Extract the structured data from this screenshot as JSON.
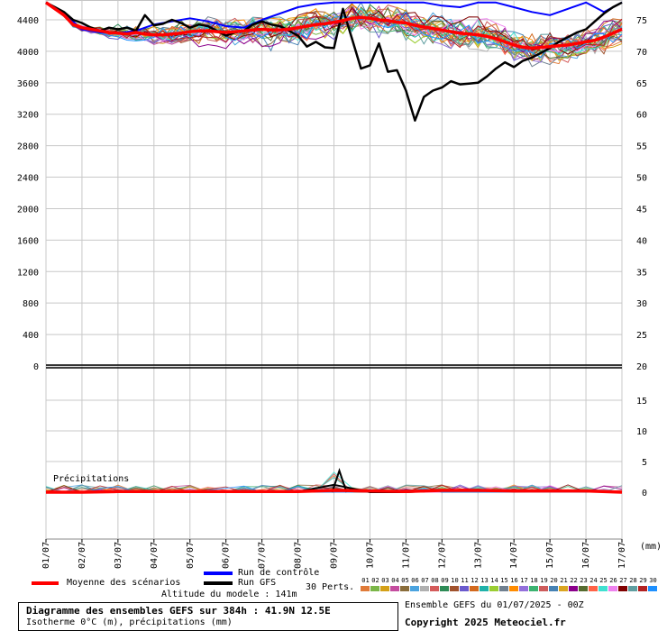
{
  "chart_data": {
    "type": "line",
    "left_axis_ticks": [
      "4400",
      "4000",
      "3600",
      "3200",
      "2800",
      "2400",
      "2000",
      "1600",
      "1200",
      "800",
      "400",
      "0"
    ],
    "right_axis_ticks_top": [
      "75",
      "70",
      "65",
      "60",
      "55",
      "50",
      "45",
      "40",
      "35",
      "30",
      "25",
      "20"
    ],
    "right_axis_ticks_bottom": [
      "15",
      "10",
      "5",
      "0"
    ],
    "date_labels": [
      "01/07",
      "02/07",
      "03/07",
      "04/07",
      "05/07",
      "06/07",
      "07/07",
      "08/07",
      "09/07",
      "10/07",
      "11/07",
      "12/07",
      "13/07",
      "14/07",
      "15/07",
      "16/07",
      "17/07"
    ],
    "unit_label": "(mm)",
    "precip_label": "Précipitations",
    "ylim_top": [
      0,
      4600
    ],
    "ylim_bottom": [
      0,
      20
    ],
    "mean_series": {
      "name": "Moyenne des scénarios",
      "x": [
        0,
        0.25,
        0.5,
        0.75,
        1,
        1.25,
        1.5,
        1.75,
        2,
        2.25,
        2.5,
        2.75,
        3,
        3.25,
        3.5,
        3.75,
        4,
        4.25,
        4.5,
        4.75,
        5,
        5.25,
        5.5,
        5.75,
        6,
        6.25,
        6.5,
        6.75,
        7,
        7.25,
        7.5,
        7.75,
        8,
        8.25,
        8.5,
        8.75,
        9,
        9.25,
        9.5,
        9.75,
        10,
        10.25,
        10.5,
        10.75,
        11,
        11.25,
        11.5,
        11.75,
        12,
        12.25,
        12.5,
        12.75,
        13,
        13.25,
        13.5,
        13.75,
        14,
        14.25,
        14.5,
        14.75,
        15,
        15.25,
        15.5,
        15.75,
        16
      ],
      "values": [
        4620,
        4540,
        4460,
        4340,
        4300,
        4280,
        4260,
        4240,
        4230,
        4220,
        4240,
        4220,
        4210,
        4210,
        4220,
        4230,
        4250,
        4260,
        4260,
        4250,
        4240,
        4250,
        4260,
        4270,
        4280,
        4270,
        4270,
        4280,
        4300,
        4320,
        4340,
        4350,
        4370,
        4390,
        4420,
        4430,
        4420,
        4400,
        4390,
        4370,
        4360,
        4330,
        4310,
        4290,
        4270,
        4250,
        4230,
        4220,
        4210,
        4190,
        4160,
        4120,
        4080,
        4050,
        4040,
        4050,
        4060,
        4070,
        4080,
        4100,
        4120,
        4140,
        4180,
        4230,
        4280
      ]
    },
    "gfs_series": {
      "name": "Run GFS",
      "x": [
        0,
        0.25,
        0.5,
        0.75,
        1,
        1.25,
        1.5,
        1.75,
        2,
        2.25,
        2.5,
        2.75,
        3,
        3.25,
        3.5,
        3.75,
        4,
        4.25,
        4.5,
        4.75,
        5,
        5.25,
        5.5,
        5.75,
        6,
        6.25,
        6.5,
        6.75,
        7,
        7.25,
        7.5,
        7.75,
        8,
        8.25,
        8.5,
        8.75,
        9,
        9.25,
        9.5,
        9.75,
        10,
        10.25,
        10.5,
        10.75,
        11,
        11.25,
        11.5,
        11.75,
        12,
        12.25,
        12.5,
        12.75,
        13,
        13.25,
        13.5,
        13.75,
        14,
        14.25,
        14.5,
        14.75,
        15,
        15.25,
        15.5,
        15.75,
        16
      ],
      "values": [
        4620,
        4560,
        4500,
        4400,
        4360,
        4300,
        4260,
        4300,
        4280,
        4300,
        4260,
        4460,
        4330,
        4350,
        4400,
        4360,
        4300,
        4340,
        4320,
        4260,
        4200,
        4240,
        4260,
        4340,
        4380,
        4340,
        4320,
        4260,
        4200,
        4060,
        4120,
        4050,
        4040,
        4540,
        4160,
        3780,
        3820,
        4100,
        3740,
        3760,
        3500,
        3120,
        3420,
        3500,
        3540,
        3620,
        3580,
        3590,
        3600,
        3680,
        3780,
        3860,
        3800,
        3880,
        3920,
        3980,
        4040,
        4120,
        4180,
        4240,
        4280,
        4380,
        4480,
        4560,
        4620
      ]
    },
    "control_series": {
      "name": "Run de contrôle",
      "x": [
        0,
        0.5,
        1,
        1.5,
        2,
        2.5,
        3,
        3.5,
        4,
        4.5,
        5,
        5.5,
        6,
        6.5,
        7,
        7.5,
        8,
        8.5,
        9,
        9.5,
        10,
        10.5,
        11,
        11.5,
        12,
        12.5,
        13,
        13.5,
        14,
        14.5,
        15,
        15.5,
        16
      ],
      "values": [
        4620,
        4480,
        4280,
        4240,
        4230,
        4260,
        4340,
        4380,
        4420,
        4380,
        4320,
        4300,
        4400,
        4480,
        4560,
        4600,
        4640,
        4620,
        4680,
        4650,
        4640,
        4660,
        4580,
        4560,
        4640,
        4650,
        4560,
        4500,
        4460,
        4540,
        4620,
        4500,
        4620
      ]
    },
    "precip_mean": {
      "x": [
        0,
        1,
        2,
        3,
        4,
        5,
        6,
        7,
        8,
        9,
        10,
        11,
        12,
        13,
        14,
        15,
        16
      ],
      "values": [
        0,
        0,
        0.1,
        0.1,
        0.1,
        0.1,
        0.1,
        0.1,
        0.3,
        0.2,
        0.1,
        0.3,
        0.3,
        0.2,
        0.2,
        0.2,
        0
      ]
    },
    "precip_gfs": {
      "x": [
        0,
        1,
        2,
        3,
        4,
        5,
        6,
        7,
        8,
        9,
        10,
        11,
        12,
        13,
        14,
        15,
        16
      ],
      "values": [
        0,
        0,
        0.2,
        0.1,
        0,
        0,
        0,
        0.1,
        1.2,
        0,
        0,
        0.3,
        0.4,
        0.1,
        0.2,
        0.1,
        0
      ]
    },
    "precip_gfs_peak": {
      "x": 8.15,
      "value": 3.5
    }
  },
  "legend": {
    "mean": "Moyenne des scénarios",
    "control": "Run de contrôle",
    "gfs": "Run GFS",
    "perts": "30 Perts.",
    "model_alt": "Altitude du modele : 141m",
    "pert_numbers": [
      "01",
      "02",
      "03",
      "04",
      "05",
      "06",
      "07",
      "08",
      "09",
      "10",
      "11",
      "12",
      "13",
      "14",
      "15",
      "16",
      "17",
      "18",
      "19",
      "20",
      "21",
      "22",
      "23",
      "24",
      "25",
      "26",
      "27",
      "28",
      "29",
      "30"
    ],
    "pert_colors": [
      "#e07b39",
      "#7ab648",
      "#d4a017",
      "#c44d9f",
      "#8a6d3b",
      "#4aa3df",
      "#b0b0b0",
      "#d45b5b",
      "#2e8b57",
      "#a0522d",
      "#6a5acd",
      "#d2691e",
      "#20b2aa",
      "#9acd32",
      "#708090",
      "#ff8c00",
      "#9370db",
      "#3cb371",
      "#cd5c5c",
      "#4682b4",
      "#daa520",
      "#8b008b",
      "#556b2f",
      "#ff6347",
      "#40e0d0",
      "#ee82ee",
      "#800000",
      "#5f9ea0",
      "#b22222",
      "#1e90ff"
    ]
  },
  "footer": {
    "title": "Diagramme des ensembles GEFS sur 384h : 41.9N 12.5E",
    "subtitle": "Isotherme 0°C (m), précipitations (mm)",
    "run": "Ensemble GEFS du 01/07/2025 - 00Z",
    "copyright": "Copyright 2025 Meteociel.fr"
  },
  "colors": {
    "mean": "#ff0000",
    "gfs": "#000000",
    "control": "#0000ff",
    "grid": "#c8c8c8"
  }
}
